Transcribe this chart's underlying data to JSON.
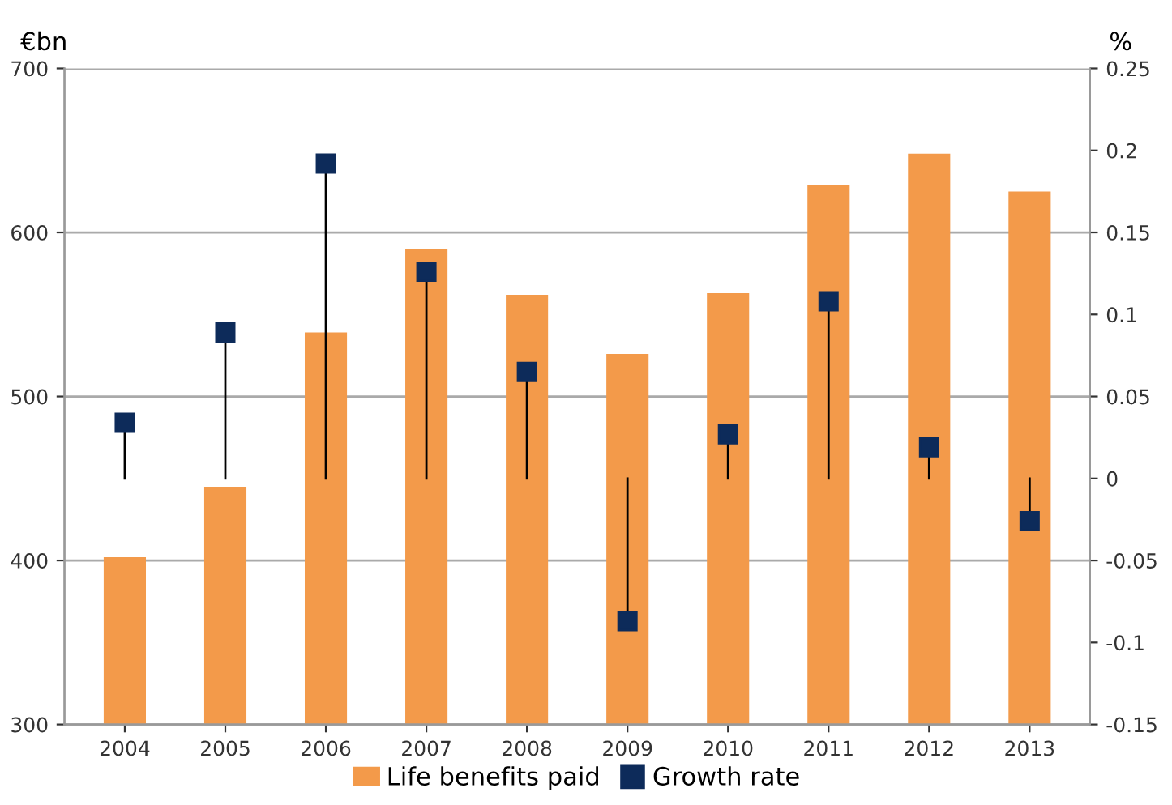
{
  "chart_data": {
    "type": "bar",
    "ylabel": "€bn",
    "y2label": "%",
    "categories": [
      "2004",
      "2005",
      "2006",
      "2007",
      "2008",
      "2009",
      "2010",
      "2011",
      "2012",
      "2013"
    ],
    "series": [
      {
        "name": "Life benefits paid",
        "color": "#f39a4a",
        "values": [
          402,
          445,
          539,
          590,
          562,
          526,
          563,
          629,
          648,
          625
        ]
      },
      {
        "name": "Growth rate",
        "type": "lollipop",
        "axis": "y2",
        "color": "#0d2b5a",
        "marker": "square",
        "values": [
          0.034,
          0.089,
          0.192,
          0.126,
          0.065,
          -0.087,
          0.027,
          0.108,
          0.019,
          -0.026
        ]
      }
    ],
    "ylim": [
      300,
      700
    ],
    "yticks": [
      300,
      400,
      500,
      600,
      700
    ],
    "y2lim": [
      -0.15,
      0.25
    ],
    "y2ticks": [
      -0.15,
      -0.1,
      -0.05,
      0,
      0.05,
      0.1,
      0.15,
      0.2,
      0.25
    ],
    "grid": "y",
    "legend": "bottom"
  }
}
